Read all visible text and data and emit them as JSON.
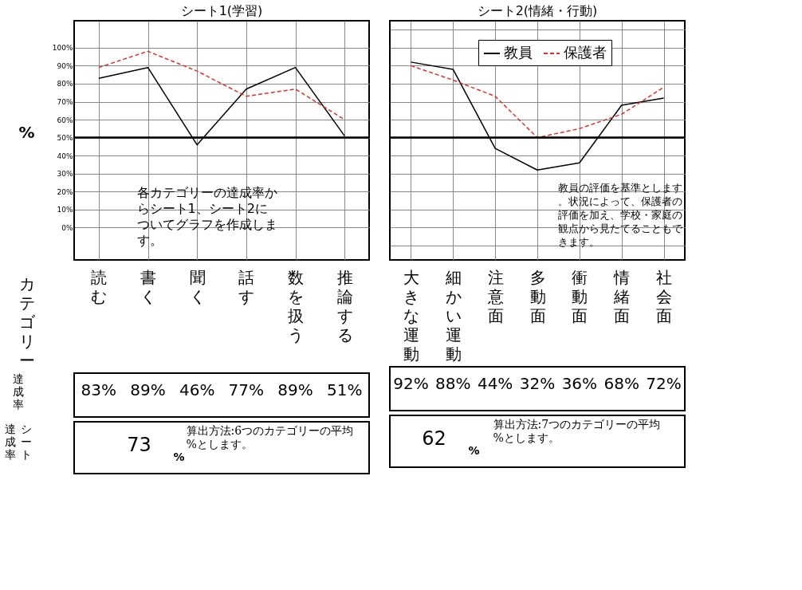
{
  "chart_data": [
    {
      "type": "line",
      "title": "シート1(学習)",
      "ylabel": "%",
      "xlabel": "カテゴリー",
      "categories": [
        "読む",
        "書く",
        "聞く",
        "話す",
        "数を扱う",
        "推論する"
      ],
      "series": [
        {
          "color": "#000000",
          "line_style": "solid",
          "values": [
            83,
            89,
            46,
            77,
            89,
            51
          ],
          "value_labels": [
            "83%",
            "89%",
            "46%",
            "77%",
            "89%",
            "51%"
          ]
        },
        {
          "color": "#d9342b",
          "line_style": "dashed",
          "values": [
            89,
            98,
            87,
            73,
            77,
            60
          ]
        }
      ],
      "ylim": [
        -18,
        115
      ],
      "yticks": [
        {
          "value": 0,
          "label": "0%"
        },
        {
          "value": 10,
          "label": "10%"
        },
        {
          "value": 20,
          "label": "20%"
        },
        {
          "value": 30,
          "label": "30%"
        },
        {
          "value": 40,
          "label": "40%"
        },
        {
          "value": 50,
          "label": "50%"
        },
        {
          "value": 60,
          "label": "60%"
        },
        {
          "value": 70,
          "label": "70%"
        },
        {
          "value": 80,
          "label": "80%"
        },
        {
          "value": 90,
          "label": "90%"
        },
        {
          "value": 100,
          "label": "100%"
        }
      ],
      "grid": true,
      "ref_lines": [
        {
          "axis": "y",
          "value": 50,
          "color": "#000000"
        }
      ],
      "annotations": [
        "各カテゴリーの達成率からシート1、シート2についてグラフを作成します。",
        "達成率",
        "達成率",
        "シート",
        "73",
        "%",
        "算出方法:6つのカテゴリーの平均%とします。"
      ]
    },
    {
      "type": "line",
      "title": "シート2(情緒・行動)",
      "categories": [
        "大きな運動",
        "細かい運動",
        "注意面",
        "多動面",
        "衝動面",
        "情緒面",
        "社会面"
      ],
      "series": [
        {
          "name": "教員",
          "color": "#000000",
          "line_style": "solid",
          "values": [
            92,
            88,
            44,
            32,
            36,
            68,
            72
          ],
          "value_labels": [
            "92%",
            "88%",
            "44%",
            "32%",
            "36%",
            "68%",
            "72%"
          ]
        },
        {
          "name": "保護者",
          "color": "#d9342b",
          "line_style": "dashed",
          "values": [
            90,
            82,
            73,
            50,
            55,
            63,
            78
          ]
        }
      ],
      "ylim": [
        -18,
        115
      ],
      "grid": true,
      "legend": "top",
      "tick_labels": "x",
      "ref_lines": [
        {
          "axis": "y",
          "value": 50,
          "color": "#000000"
        }
      ],
      "annotations": [
        "教員の評価を基準とします。状況によって、保護者の評価を加え、学校・家庭の観点から見たてることもできます。",
        "62",
        "%",
        "算出方法:7つのカテゴリーの平均%とします。"
      ]
    }
  ]
}
